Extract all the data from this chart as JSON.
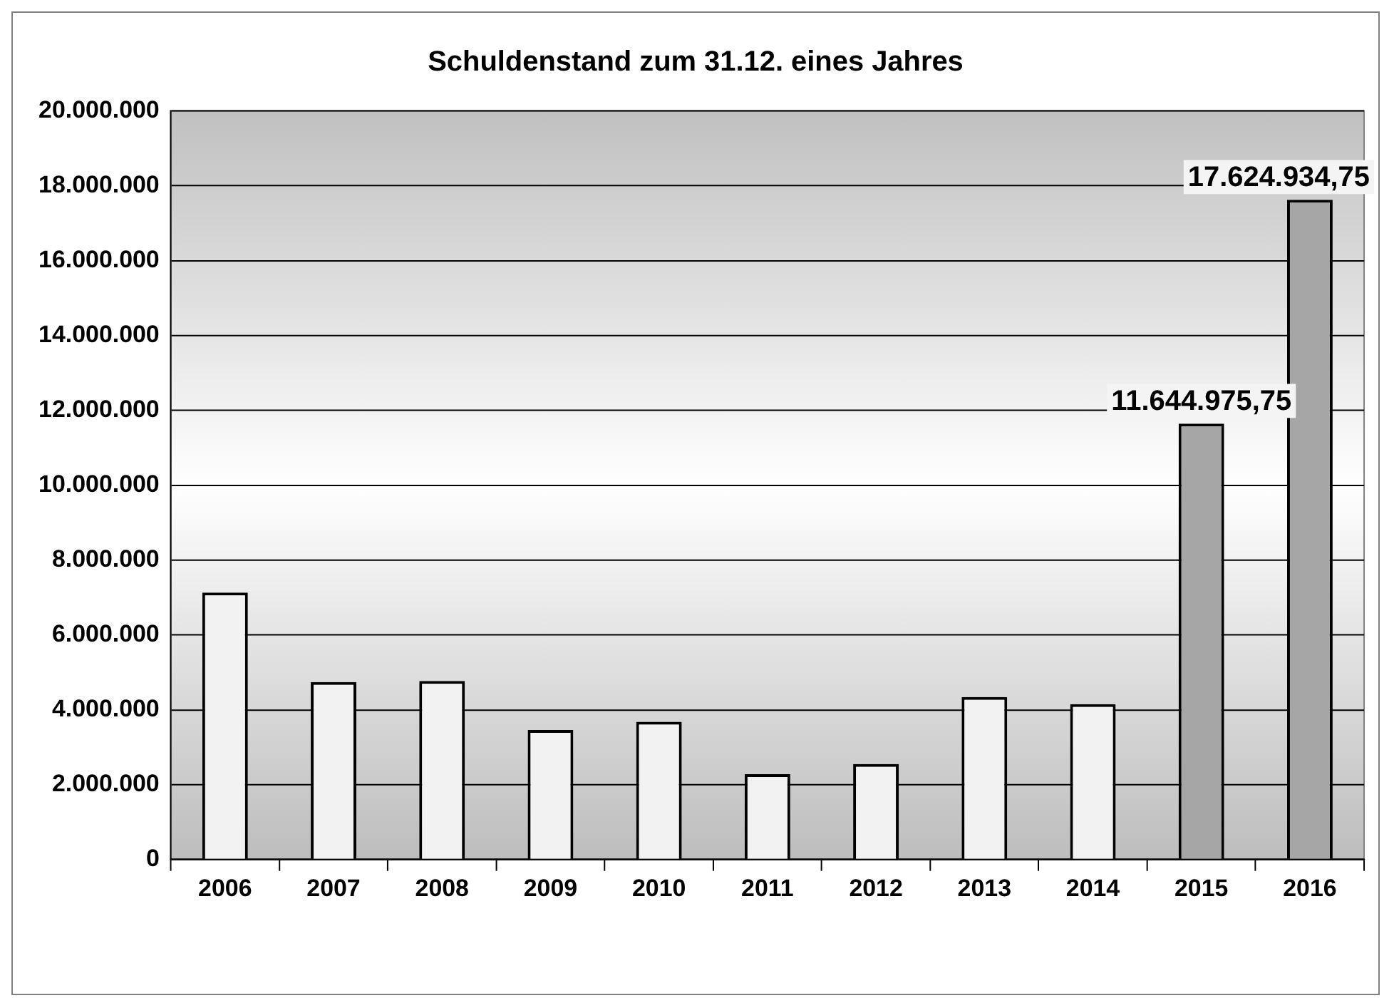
{
  "chart_data": {
    "type": "bar",
    "title": "Schuldenstand zum 31.12. eines Jahres",
    "categories": [
      "2006",
      "2007",
      "2008",
      "2009",
      "2010",
      "2011",
      "2012",
      "2013",
      "2014",
      "2015",
      "2016"
    ],
    "values": [
      7130000,
      4740000,
      4770000,
      3460000,
      3680000,
      2280000,
      2550000,
      4340000,
      4150000,
      11644975.75,
      17624934.75
    ],
    "colors": [
      "#f2f2f2",
      "#f2f2f2",
      "#f2f2f2",
      "#f2f2f2",
      "#f2f2f2",
      "#f2f2f2",
      "#f2f2f2",
      "#f2f2f2",
      "#f2f2f2",
      "#a6a6a6",
      "#a6a6a6"
    ],
    "value_labels": [
      null,
      null,
      null,
      null,
      null,
      null,
      null,
      null,
      null,
      "11.644.975,75",
      "17.624.934,75"
    ],
    "ylim": [
      0,
      20000000
    ],
    "yticks": [
      0,
      {
        "value": 2000000,
        "label": "2.000.000"
      },
      {
        "value": 4000000,
        "label": "4.000.000"
      },
      {
        "value": 6000000,
        "label": "6.000.000"
      },
      {
        "value": 8000000,
        "label": "8.000.000"
      },
      {
        "value": 10000000,
        "label": "10.000.000"
      },
      {
        "value": 12000000,
        "label": "12.000.000"
      },
      {
        "value": 14000000,
        "label": "14.000.000"
      },
      {
        "value": 16000000,
        "label": "16.000.000"
      },
      {
        "value": 18000000,
        "label": "18.000.000"
      },
      {
        "value": 20000000,
        "label": "20.000.000"
      }
    ],
    "grid": "y",
    "legend": false
  }
}
